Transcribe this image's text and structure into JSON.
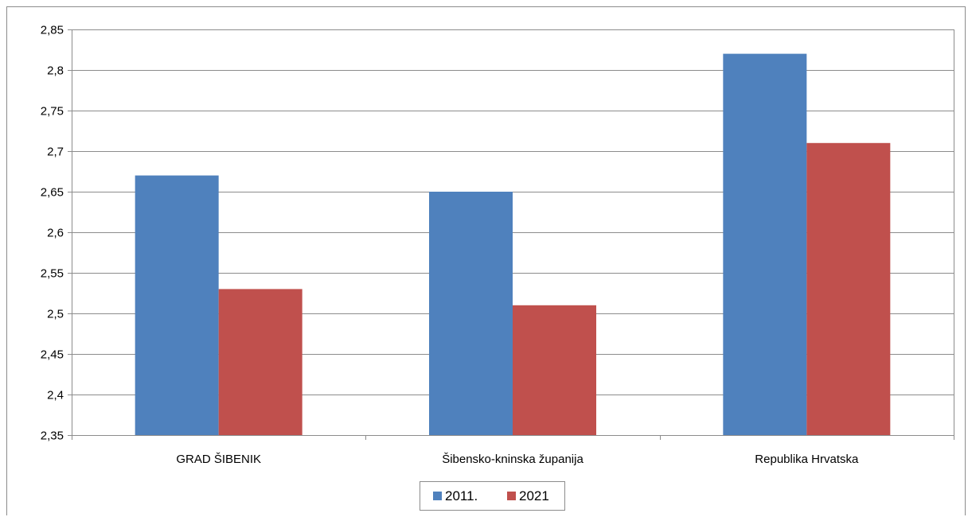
{
  "chart_data": {
    "type": "bar",
    "title": "",
    "xlabel": "",
    "ylabel": "",
    "categories": [
      "GRAD ŠIBENIK",
      "Šibensko-kninska županija",
      "Republika Hrvatska"
    ],
    "series": [
      {
        "name": "2011.",
        "color": "#4f81bd",
        "values": [
          2.67,
          2.65,
          2.82
        ]
      },
      {
        "name": "2021",
        "color": "#c0504d",
        "values": [
          2.53,
          2.51,
          2.71
        ]
      }
    ],
    "ylim": [
      2.35,
      2.85
    ],
    "yticks": [
      2.35,
      2.4,
      2.45,
      2.5,
      2.55,
      2.6,
      2.65,
      2.7,
      2.75,
      2.8,
      2.85
    ],
    "ytick_labels": [
      "2,35",
      "2,4",
      "2,45",
      "2,5",
      "2,55",
      "2,6",
      "2,65",
      "2,7",
      "2,75",
      "2,8",
      "2,85"
    ],
    "grid": true,
    "legend_position": "bottom"
  }
}
